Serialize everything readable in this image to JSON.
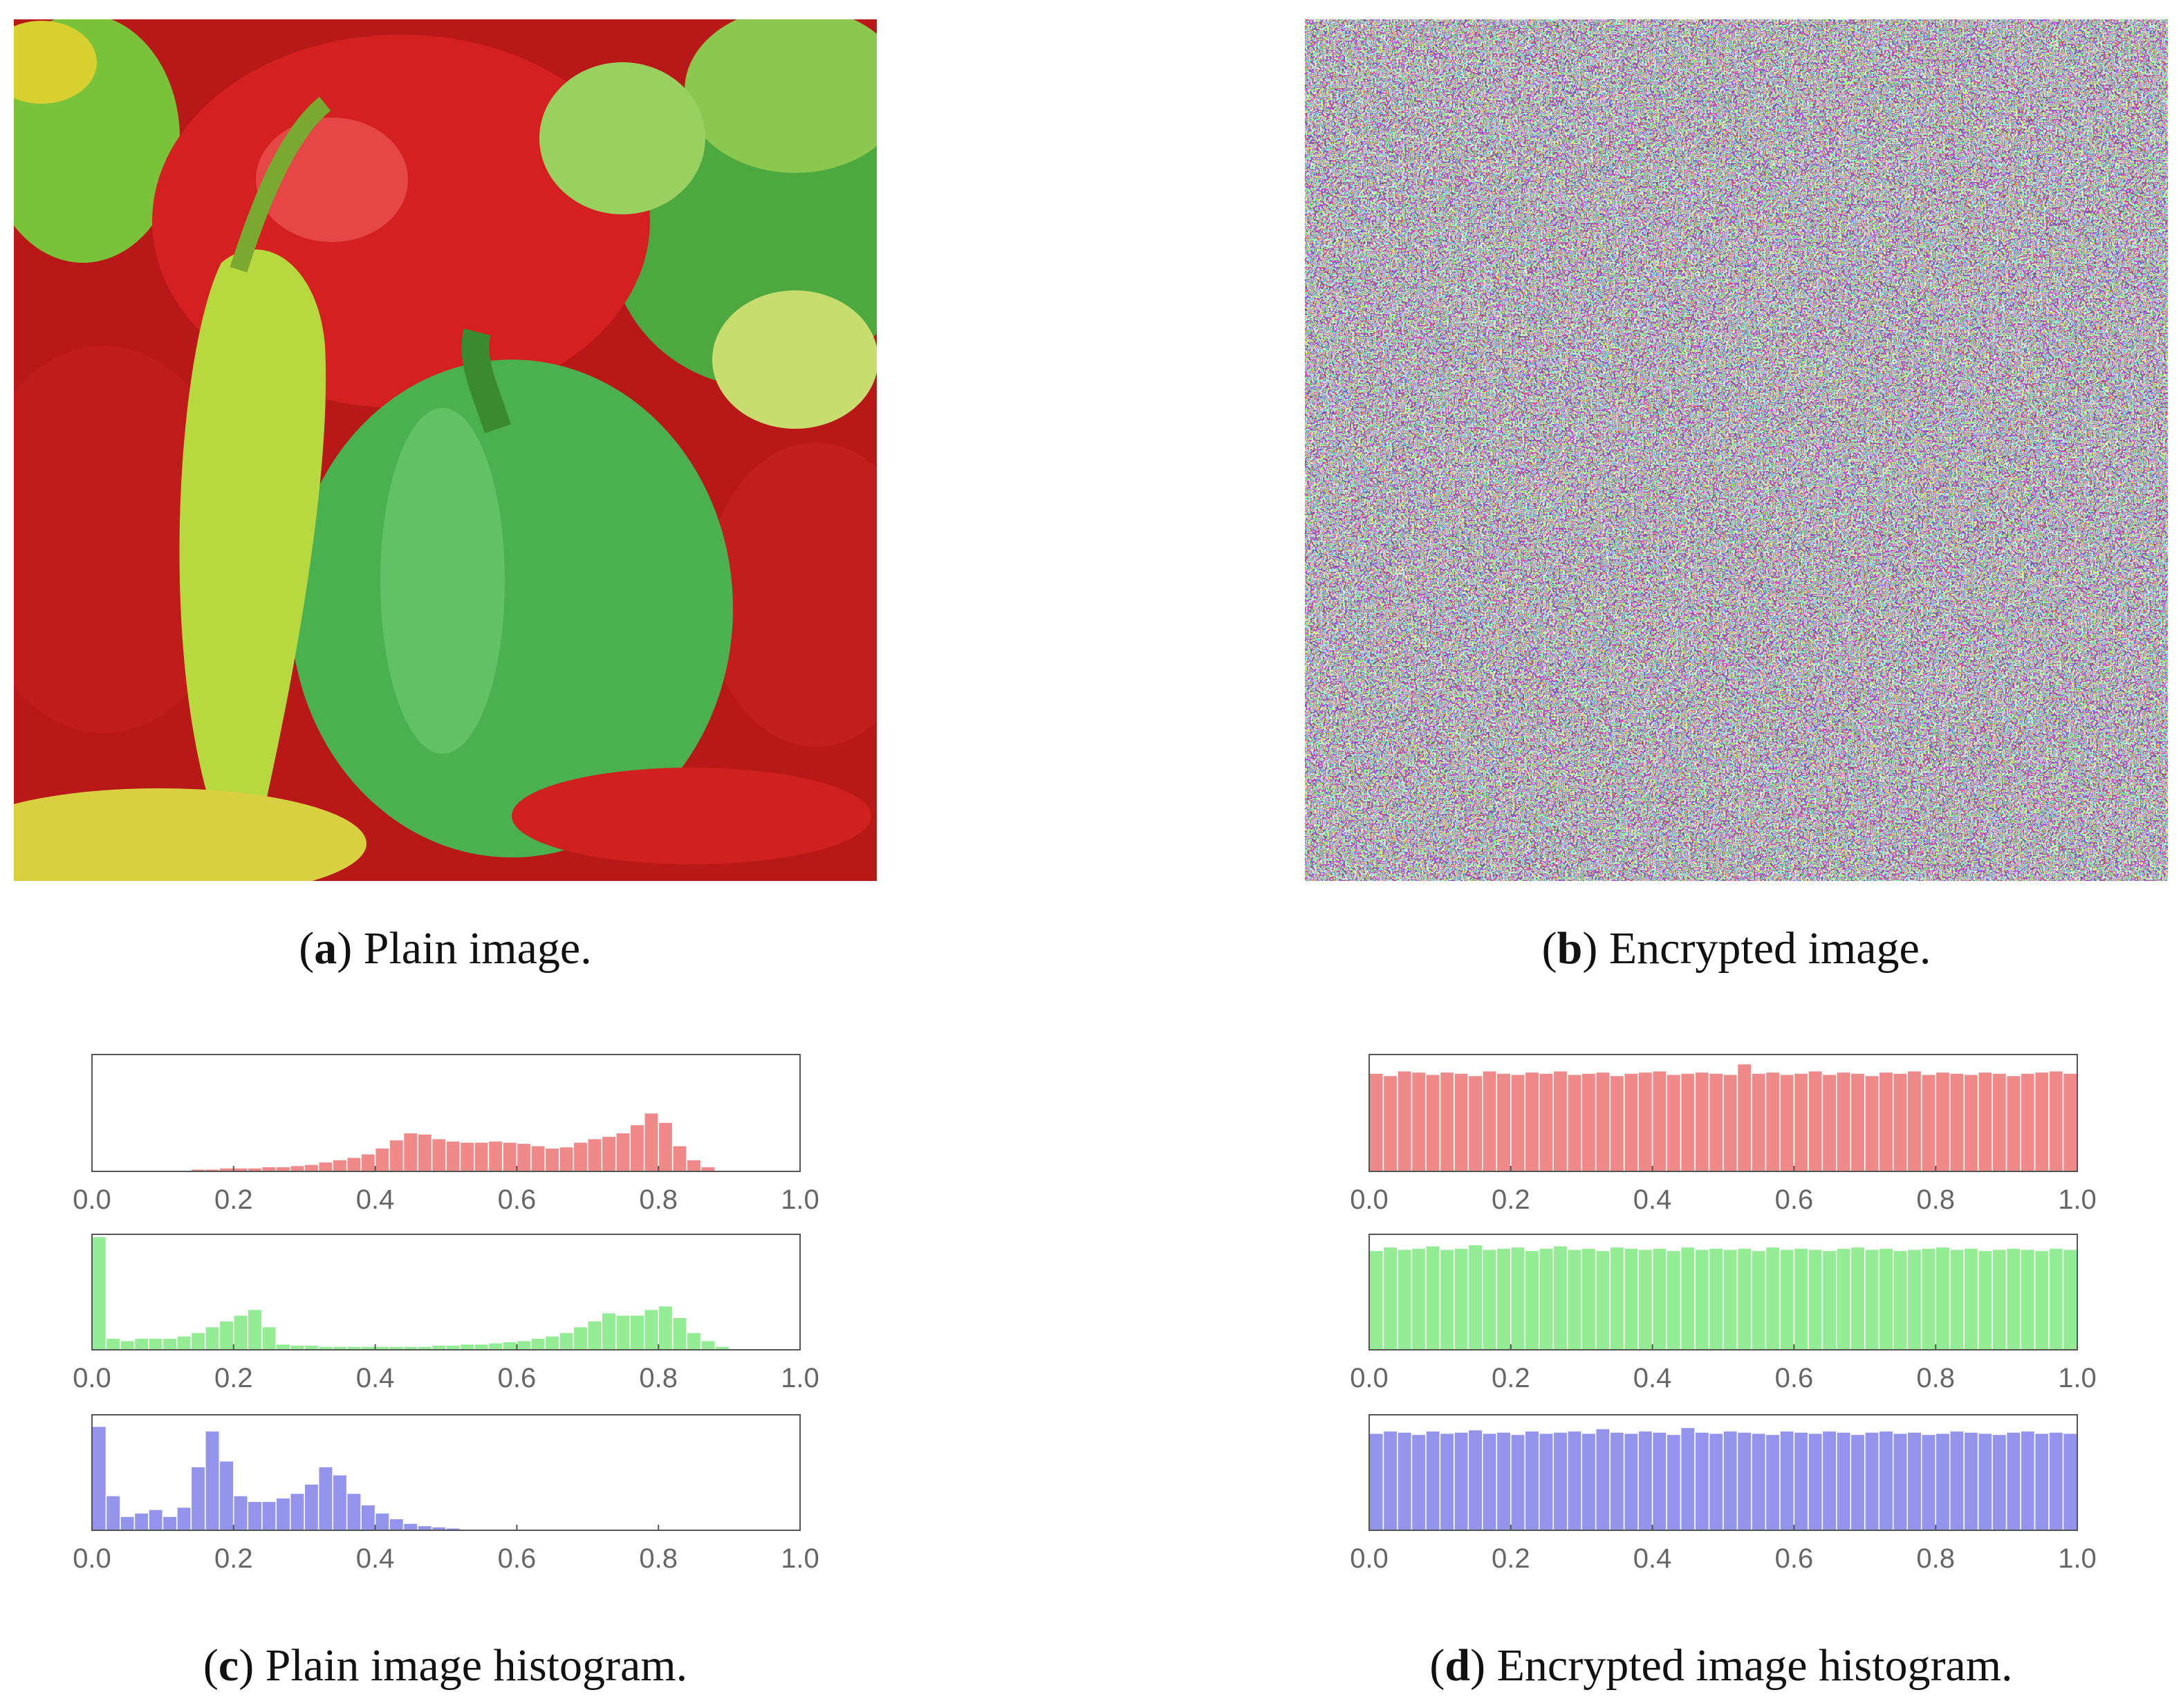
{
  "chart_data": [
    {
      "type": "histogram",
      "color": "#f08a8a",
      "xlim": [
        0,
        1
      ],
      "ylim": [
        0,
        1
      ],
      "xticks": [
        {
          "value": 0,
          "label": "0.0"
        },
        0.2,
        0.4,
        0.6,
        0.8,
        {
          "value": 1,
          "label": "1.0"
        }
      ],
      "bins": [
        0,
        0.02,
        0.04,
        0.06,
        0.08,
        0.1,
        0.12,
        0.14,
        0.16,
        0.18,
        0.2,
        0.22,
        0.24,
        0.26,
        0.28,
        0.3,
        0.32,
        0.34,
        0.36,
        0.38,
        0.4,
        0.42,
        0.44,
        0.46,
        0.48,
        0.5,
        0.52,
        0.54,
        0.56,
        0.58,
        0.6,
        0.62,
        0.64,
        0.66,
        0.68,
        0.7,
        0.72,
        0.74,
        0.76,
        0.78,
        0.8,
        0.82,
        0.84,
        0.86,
        0.88,
        0.9,
        0.92,
        0.94,
        0.96,
        0.98,
        1
      ],
      "values": [
        0,
        0,
        0,
        0,
        0,
        0.01,
        0.01,
        0.02,
        0.02,
        0.03,
        0.03,
        0.03,
        0.04,
        0.04,
        0.05,
        0.06,
        0.08,
        0.1,
        0.12,
        0.15,
        0.2,
        0.27,
        0.33,
        0.32,
        0.28,
        0.26,
        0.25,
        0.25,
        0.26,
        0.25,
        0.24,
        0.22,
        0.2,
        0.21,
        0.25,
        0.28,
        0.3,
        0.33,
        0.4,
        0.5,
        0.42,
        0.22,
        0.1,
        0.04,
        0.01,
        0,
        0,
        0,
        0,
        0
      ]
    },
    {
      "type": "histogram",
      "color": "#94ec94",
      "xlim": [
        0,
        1
      ],
      "ylim": [
        0,
        1
      ],
      "xticks": [
        {
          "value": 0,
          "label": "0.0"
        },
        0.2,
        0.4,
        0.6,
        0.8,
        {
          "value": 1,
          "label": "1.0"
        }
      ],
      "bins": [
        0,
        0.02,
        0.04,
        0.06,
        0.08,
        0.1,
        0.12,
        0.14,
        0.16,
        0.18,
        0.2,
        0.22,
        0.24,
        0.26,
        0.28,
        0.3,
        0.32,
        0.34,
        0.36,
        0.38,
        0.4,
        0.42,
        0.44,
        0.46,
        0.48,
        0.5,
        0.52,
        0.54,
        0.56,
        0.58,
        0.6,
        0.62,
        0.64,
        0.66,
        0.68,
        0.7,
        0.72,
        0.74,
        0.76,
        0.78,
        0.8,
        0.82,
        0.84,
        0.86,
        0.88,
        0.9,
        0.92,
        0.94,
        0.96,
        0.98,
        1
      ],
      "values": [
        0.98,
        0.1,
        0.08,
        0.1,
        0.1,
        0.1,
        0.12,
        0.15,
        0.2,
        0.25,
        0.3,
        0.35,
        0.2,
        0.05,
        0.04,
        0.04,
        0.03,
        0.03,
        0.03,
        0.03,
        0.03,
        0.03,
        0.03,
        0.03,
        0.04,
        0.04,
        0.05,
        0.05,
        0.06,
        0.07,
        0.08,
        0.1,
        0.12,
        0.15,
        0.2,
        0.25,
        0.32,
        0.3,
        0.3,
        0.35,
        0.38,
        0.28,
        0.15,
        0.08,
        0.03,
        0,
        0,
        0,
        0,
        0
      ]
    },
    {
      "type": "histogram",
      "color": "#9494ec",
      "xlim": [
        0,
        1
      ],
      "ylim": [
        0,
        1
      ],
      "xticks": [
        {
          "value": 0,
          "label": "0.0"
        },
        0.2,
        0.4,
        0.6,
        0.8,
        {
          "value": 1,
          "label": "1.0"
        }
      ],
      "bins": [
        0,
        0.02,
        0.04,
        0.06,
        0.08,
        0.1,
        0.12,
        0.14,
        0.16,
        0.18,
        0.2,
        0.22,
        0.24,
        0.26,
        0.28,
        0.3,
        0.32,
        0.34,
        0.36,
        0.38,
        0.4,
        0.42,
        0.44,
        0.46,
        0.48,
        0.5,
        0.52,
        0.54,
        0.56,
        0.58,
        0.6,
        0.62,
        0.64,
        0.66,
        0.68,
        0.7,
        0.72,
        0.74,
        0.76,
        0.78,
        0.8,
        0.82,
        0.84,
        0.86,
        0.88,
        0.9,
        0.92,
        0.94,
        0.96,
        0.98,
        1
      ],
      "values": [
        0.9,
        0.3,
        0.12,
        0.15,
        0.18,
        0.12,
        0.2,
        0.55,
        0.86,
        0.6,
        0.3,
        0.25,
        0.25,
        0.28,
        0.32,
        0.4,
        0.55,
        0.48,
        0.32,
        0.22,
        0.15,
        0.1,
        0.06,
        0.04,
        0.03,
        0.02,
        0.01,
        0.01,
        0.01,
        0.01,
        0,
        0,
        0,
        0,
        0,
        0,
        0,
        0,
        0,
        0,
        0,
        0,
        0,
        0,
        0,
        0,
        0,
        0,
        0,
        0
      ]
    },
    {
      "type": "histogram",
      "color": "#f08a8a",
      "xlim": [
        0,
        1
      ],
      "ylim": [
        0,
        1
      ],
      "xticks": [
        {
          "value": 0,
          "label": "0.0"
        },
        0.2,
        0.4,
        0.6,
        0.8,
        {
          "value": 1,
          "label": "1.0"
        }
      ],
      "bins": [
        0,
        0.02,
        0.04,
        0.06,
        0.08,
        0.1,
        0.12,
        0.14,
        0.16,
        0.18,
        0.2,
        0.22,
        0.24,
        0.26,
        0.28,
        0.3,
        0.32,
        0.34,
        0.36,
        0.38,
        0.4,
        0.42,
        0.44,
        0.46,
        0.48,
        0.5,
        0.52,
        0.54,
        0.56,
        0.58,
        0.6,
        0.62,
        0.64,
        0.66,
        0.68,
        0.7,
        0.72,
        0.74,
        0.76,
        0.78,
        0.8,
        0.82,
        0.84,
        0.86,
        0.88,
        0.9,
        0.92,
        0.94,
        0.96,
        0.98,
        1
      ],
      "values": [
        0.84,
        0.82,
        0.86,
        0.85,
        0.83,
        0.85,
        0.84,
        0.82,
        0.86,
        0.84,
        0.83,
        0.85,
        0.84,
        0.86,
        0.83,
        0.84,
        0.85,
        0.82,
        0.84,
        0.85,
        0.86,
        0.83,
        0.84,
        0.85,
        0.84,
        0.83,
        0.92,
        0.84,
        0.85,
        0.83,
        0.84,
        0.86,
        0.83,
        0.85,
        0.84,
        0.82,
        0.85,
        0.84,
        0.86,
        0.83,
        0.85,
        0.84,
        0.83,
        0.85,
        0.84,
        0.82,
        0.84,
        0.85,
        0.86,
        0.84
      ]
    },
    {
      "type": "histogram",
      "color": "#94ec94",
      "xlim": [
        0,
        1
      ],
      "ylim": [
        0,
        1
      ],
      "xticks": [
        {
          "value": 0,
          "label": "0.0"
        },
        0.2,
        0.4,
        0.6,
        0.8,
        {
          "value": 1,
          "label": "1.0"
        }
      ],
      "bins": [
        0,
        0.02,
        0.04,
        0.06,
        0.08,
        0.1,
        0.12,
        0.14,
        0.16,
        0.18,
        0.2,
        0.22,
        0.24,
        0.26,
        0.28,
        0.3,
        0.32,
        0.34,
        0.36,
        0.38,
        0.4,
        0.42,
        0.44,
        0.46,
        0.48,
        0.5,
        0.52,
        0.54,
        0.56,
        0.58,
        0.6,
        0.62,
        0.64,
        0.66,
        0.68,
        0.7,
        0.72,
        0.74,
        0.76,
        0.78,
        0.8,
        0.82,
        0.84,
        0.86,
        0.88,
        0.9,
        0.92,
        0.94,
        0.96,
        0.98,
        1
      ],
      "values": [
        0.86,
        0.89,
        0.87,
        0.88,
        0.9,
        0.87,
        0.88,
        0.91,
        0.87,
        0.88,
        0.89,
        0.86,
        0.88,
        0.9,
        0.87,
        0.88,
        0.86,
        0.89,
        0.88,
        0.87,
        0.88,
        0.86,
        0.89,
        0.87,
        0.88,
        0.87,
        0.88,
        0.86,
        0.89,
        0.87,
        0.88,
        0.87,
        0.86,
        0.88,
        0.89,
        0.87,
        0.88,
        0.86,
        0.87,
        0.88,
        0.89,
        0.87,
        0.88,
        0.86,
        0.87,
        0.88,
        0.87,
        0.86,
        0.88,
        0.87
      ]
    },
    {
      "type": "histogram",
      "color": "#9494ec",
      "xlim": [
        0,
        1
      ],
      "ylim": [
        0,
        1
      ],
      "xticks": [
        {
          "value": 0,
          "label": "0.0"
        },
        0.2,
        0.4,
        0.6,
        0.8,
        {
          "value": 1,
          "label": "1.0"
        }
      ],
      "bins": [
        0,
        0.02,
        0.04,
        0.06,
        0.08,
        0.1,
        0.12,
        0.14,
        0.16,
        0.18,
        0.2,
        0.22,
        0.24,
        0.26,
        0.28,
        0.3,
        0.32,
        0.34,
        0.36,
        0.38,
        0.4,
        0.42,
        0.44,
        0.46,
        0.48,
        0.5,
        0.52,
        0.54,
        0.56,
        0.58,
        0.6,
        0.62,
        0.64,
        0.66,
        0.68,
        0.7,
        0.72,
        0.74,
        0.76,
        0.78,
        0.8,
        0.82,
        0.84,
        0.86,
        0.88,
        0.9,
        0.92,
        0.94,
        0.96,
        0.98,
        1
      ],
      "values": [
        0.84,
        0.86,
        0.85,
        0.83,
        0.86,
        0.84,
        0.85,
        0.87,
        0.84,
        0.85,
        0.83,
        0.86,
        0.84,
        0.85,
        0.86,
        0.84,
        0.88,
        0.85,
        0.84,
        0.86,
        0.85,
        0.83,
        0.89,
        0.85,
        0.84,
        0.86,
        0.85,
        0.84,
        0.83,
        0.86,
        0.85,
        0.84,
        0.86,
        0.85,
        0.83,
        0.85,
        0.86,
        0.84,
        0.85,
        0.83,
        0.84,
        0.86,
        0.85,
        0.84,
        0.83,
        0.85,
        0.86,
        0.84,
        0.85,
        0.84
      ]
    }
  ],
  "captions": [
    {
      "parts": [
        "(",
        "a",
        ") Plain image."
      ]
    },
    {
      "parts": [
        "(",
        "b",
        ") Encrypted image."
      ]
    },
    {
      "parts": [
        "(",
        "c",
        ") Plain image histogram."
      ]
    },
    {
      "parts": [
        "(",
        "d",
        ") Encrypted image histogram."
      ]
    }
  ]
}
